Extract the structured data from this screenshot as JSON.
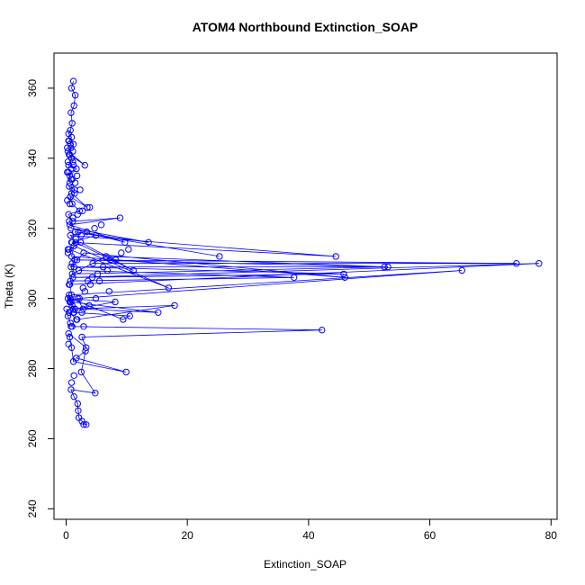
{
  "chart_data": {
    "type": "scatter",
    "title": "ATOM4 Northbound Extinction_SOAP",
    "xlabel": "Extinction_SOAP",
    "ylabel": "Theta (K)",
    "xlim": [
      -2,
      81
    ],
    "ylim": [
      237,
      370
    ],
    "xticks": [
      0,
      20,
      40,
      60,
      80
    ],
    "yticks": [
      240,
      260,
      280,
      300,
      320,
      340,
      360
    ],
    "grid": false,
    "legend": "none",
    "color": "#0000ff",
    "series": [
      {
        "style": "line+points",
        "x": [
          2.9,
          3.3,
          2.6,
          2.1,
          2.0,
          1.9,
          1.3,
          0.8,
          4.8,
          2.5,
          3.2,
          1.7,
          9.9,
          1.2,
          0.9,
          0.6,
          0.4,
          3.3,
          2.6,
          42.2,
          1.0,
          0.7,
          0.3,
          0.1,
          0.5,
          1.8,
          17.9,
          1.2,
          0.8,
          0.5,
          0.3,
          8.1,
          1.5,
          1.0,
          0.7,
          9.4,
          10.5,
          1.2,
          0.6,
          15.2,
          2.8,
          1.9,
          65.3,
          0.9,
          0.6,
          78.0,
          1.1,
          45.8,
          1.3,
          0.7,
          37.6,
          2.1,
          4.4,
          74.3,
          1.4,
          0.8,
          52.5,
          1.0,
          6.6,
          53.1,
          1.8,
          2.9,
          46.0,
          0.9,
          1.3,
          16.9,
          0.5,
          2.4,
          11.1,
          1.6,
          0.7,
          44.5,
          1.0,
          4.9,
          25.3,
          1.5,
          13.6,
          0.8,
          9.7,
          0.6,
          8.9,
          1.1,
          0.4,
          2.2,
          1.0,
          0.7,
          3.5,
          0.9,
          0.5,
          1.4,
          0.8,
          0.2,
          0.6,
          1.7,
          0.4,
          0.9,
          1.1,
          0.6,
          3.1,
          0.3,
          0.8,
          1.2,
          0.5,
          0.9,
          0.4,
          0.7,
          1.0,
          0.8,
          1.3,
          1.5,
          0.9,
          1.2
        ],
        "y": [
          264,
          264,
          265,
          266,
          268,
          270,
          272,
          274,
          273,
          279,
          285,
          283,
          279,
          282,
          286,
          289,
          290,
          286,
          289,
          291,
          292,
          293,
          295,
          297,
          296,
          294,
          298,
          297,
          299,
          301,
          300,
          299,
          297,
          298,
          300,
          294,
          295,
          296,
          299,
          296,
          297,
          300,
          308,
          301,
          304,
          310,
          306,
          307,
          309,
          305,
          306,
          308,
          310,
          310,
          311,
          309,
          309,
          307,
          312,
          309,
          311,
          313,
          306,
          312,
          315,
          303,
          314,
          316,
          308,
          316,
          318,
          312,
          316,
          318,
          312,
          319,
          316,
          320,
          316,
          321,
          323,
          322,
          324,
          325,
          327,
          329,
          326,
          330,
          332,
          331,
          334,
          336,
          335,
          337,
          338,
          340,
          339,
          341,
          338,
          342,
          343,
          344,
          345,
          346,
          347,
          348,
          350,
          353,
          355,
          358,
          360,
          362
        ]
      },
      {
        "style": "points",
        "x": [
          0.4,
          0.8,
          1.3,
          2.2,
          2.8,
          3.6,
          4.3,
          5.2,
          6.1,
          7.3,
          0.3,
          0.9,
          1.6,
          2.5,
          3.4,
          4.7,
          5.8,
          0.5,
          1.1,
          1.9,
          2.7,
          3.9,
          0.2,
          0.7,
          1.4,
          2.3,
          0.6,
          1.0,
          1.8,
          0.4,
          0.8,
          1.2,
          0.3,
          0.9,
          0.5,
          1.1,
          0.2,
          0.7,
          0.4,
          1.5,
          0.6,
          2.0,
          0.3,
          1.0,
          0.5,
          0.8,
          3.1,
          4.0,
          5.5,
          6.8,
          8.2,
          9.1,
          10.3,
          2.6,
          3.8,
          4.9,
          7.1,
          1.7,
          2.9,
          0.9,
          1.3
        ],
        "y": [
          287,
          292,
          296,
          300,
          303,
          305,
          306,
          307,
          309,
          311,
          314,
          316,
          317,
          318,
          319,
          320,
          321,
          322,
          323,
          324,
          325,
          326,
          328,
          329,
          330,
          331,
          333,
          334,
          335,
          336,
          337,
          338,
          339,
          340,
          341,
          342,
          343,
          344,
          345,
          333,
          327,
          319,
          313,
          310,
          304,
          299,
          302,
          304,
          305,
          308,
          311,
          313,
          314,
          296,
          298,
          300,
          302,
          294,
          292,
          276,
          278
        ]
      }
    ]
  }
}
